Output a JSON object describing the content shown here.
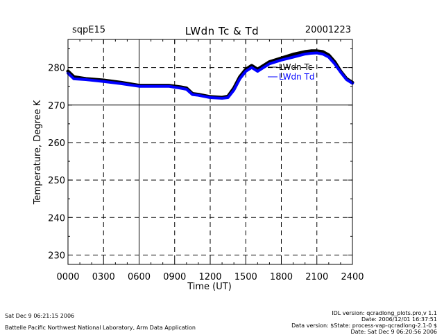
{
  "header": {
    "site": "sqpE15",
    "title": "LWdn Tc & Td",
    "date": "20001223"
  },
  "chart_data": {
    "type": "line",
    "xlabel": "Time (UT)",
    "ylabel": "Temperature, Degree K",
    "xlim": [
      0,
      2400
    ],
    "ylim": [
      227.5,
      287.5
    ],
    "x_ticks": [
      "0000",
      "0300",
      "0600",
      "0900",
      "1200",
      "1500",
      "1800",
      "2100",
      "2400"
    ],
    "y_ticks": [
      230,
      240,
      250,
      260,
      270,
      280
    ],
    "grid": true,
    "legend_position": "top-right",
    "series": [
      {
        "name": "LWdn Tc",
        "color": "#000000",
        "x": [
          0,
          50,
          150,
          300,
          450,
          600,
          700,
          850,
          950,
          1000,
          1050,
          1100,
          1200,
          1300,
          1350,
          1400,
          1450,
          1500,
          1550,
          1600,
          1650,
          1700,
          1800,
          1900,
          2000,
          2050,
          2100,
          2150,
          2200,
          2250,
          2300,
          2350,
          2400
        ],
        "y": [
          279.0,
          277.5,
          277.0,
          276.6,
          276.0,
          275.2,
          275.2,
          275.2,
          274.8,
          274.5,
          273.0,
          272.8,
          272.2,
          272.0,
          272.3,
          274.5,
          277.5,
          279.5,
          280.5,
          279.5,
          280.5,
          281.5,
          282.5,
          283.5,
          284.2,
          284.4,
          284.4,
          284.2,
          283.3,
          281.5,
          279.0,
          277.0,
          276.0
        ]
      },
      {
        "name": "LWdn Td",
        "color": "#0000ff",
        "x": [
          0,
          50,
          150,
          300,
          450,
          600,
          700,
          850,
          950,
          1000,
          1050,
          1100,
          1200,
          1300,
          1350,
          1400,
          1450,
          1500,
          1550,
          1600,
          1650,
          1700,
          1800,
          1900,
          2000,
          2050,
          2100,
          2150,
          2200,
          2250,
          2300,
          2350,
          2400
        ],
        "y": [
          278.5,
          277.0,
          276.8,
          276.3,
          275.7,
          275.0,
          275.0,
          275.0,
          274.5,
          274.2,
          272.8,
          272.6,
          272.0,
          271.8,
          272.0,
          274.0,
          277.0,
          279.0,
          280.0,
          279.0,
          280.0,
          281.0,
          282.0,
          282.8,
          283.6,
          283.8,
          283.9,
          283.6,
          282.8,
          281.0,
          278.8,
          276.8,
          275.8
        ]
      }
    ]
  },
  "footer": {
    "left_lines": [
      "Sat Dec  9 06:21:15 2006",
      "Battelle Pacific Northwest National Laboratory, Arm Data Application"
    ],
    "right_lines": [
      "IDL version: qcradlong_plots.pro,v 1.1",
      "Date: 2006/12/01 16:37:51",
      "Data version: $State: process-vap-qcradlong-2.1-0 $",
      "Date: Sat Dec  9 06:20:56 2006"
    ]
  }
}
